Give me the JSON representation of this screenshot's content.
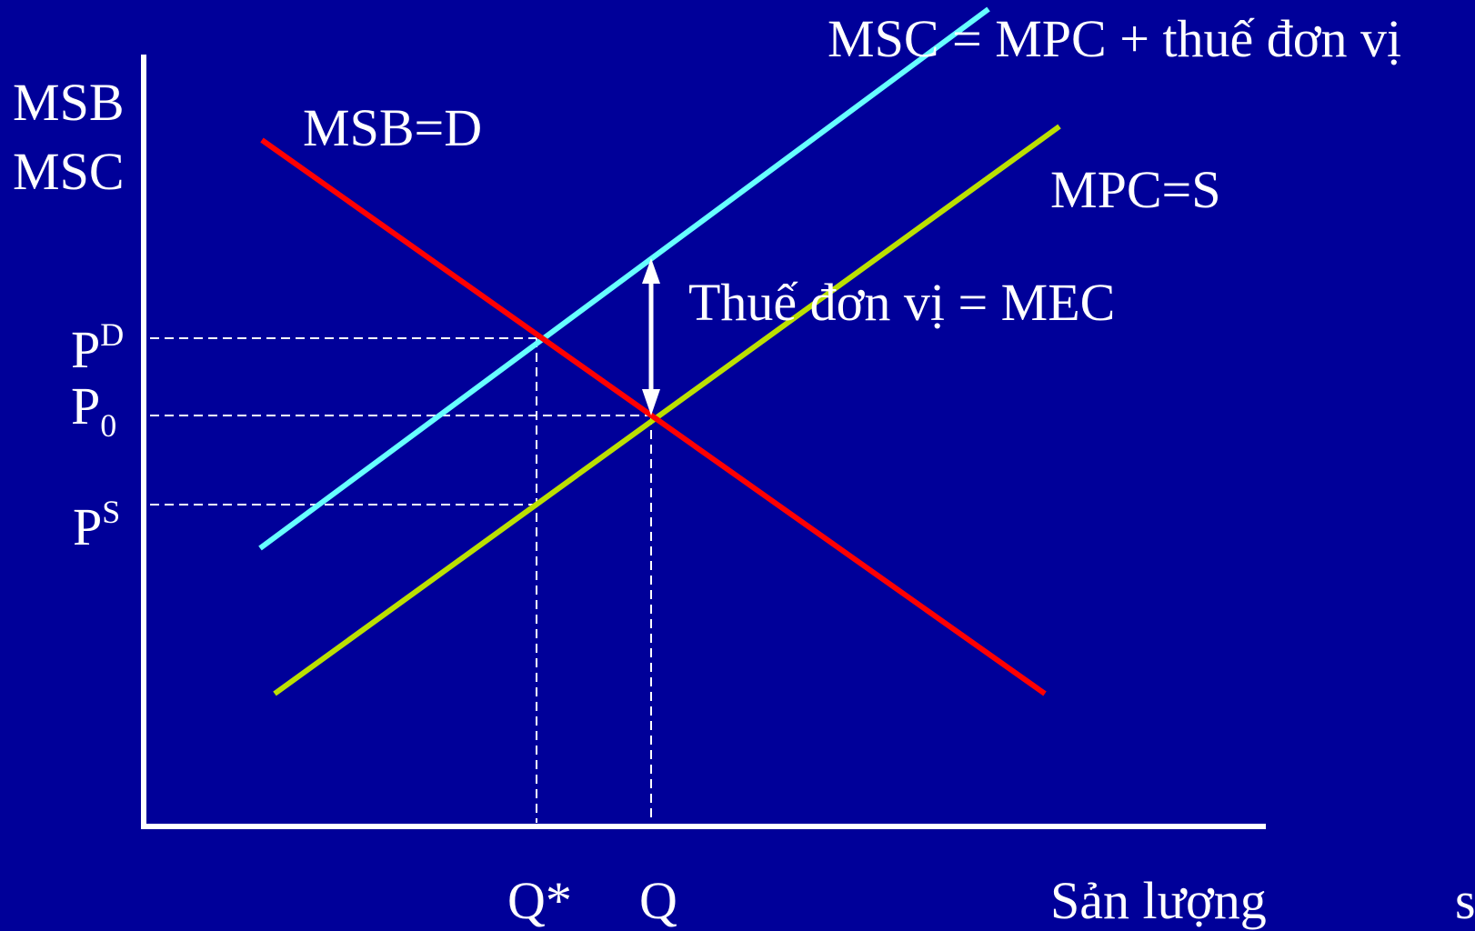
{
  "colors": {
    "background": "#000099",
    "axes": "#ffffff",
    "guides": "#ffffff",
    "msb_curve": "#ff0000",
    "msc_curve": "#66ffff",
    "mpc_curve": "#bbe000",
    "arrow": "#ffffff",
    "text": "#ffffff"
  },
  "labels": {
    "y_axis_top": "MSB",
    "y_axis_bottom": "MSC",
    "msb_curve": "MSB=D",
    "msc_curve": "MSC = MPC + thuế đơn vị",
    "mpc_curve": "MPC=S",
    "tax_arrow": "Thuế đơn vị = MEC",
    "x_axis": "Sản lượng",
    "x_axis_overflow": "s"
  },
  "price_ticks": {
    "pd_base": "P",
    "pd_sup": "D",
    "p0_base": "P",
    "p0_sub": "0",
    "ps_base": "P",
    "ps_sup": "S"
  },
  "quantity_ticks": {
    "q_star": "Q*",
    "q": "Q"
  }
}
